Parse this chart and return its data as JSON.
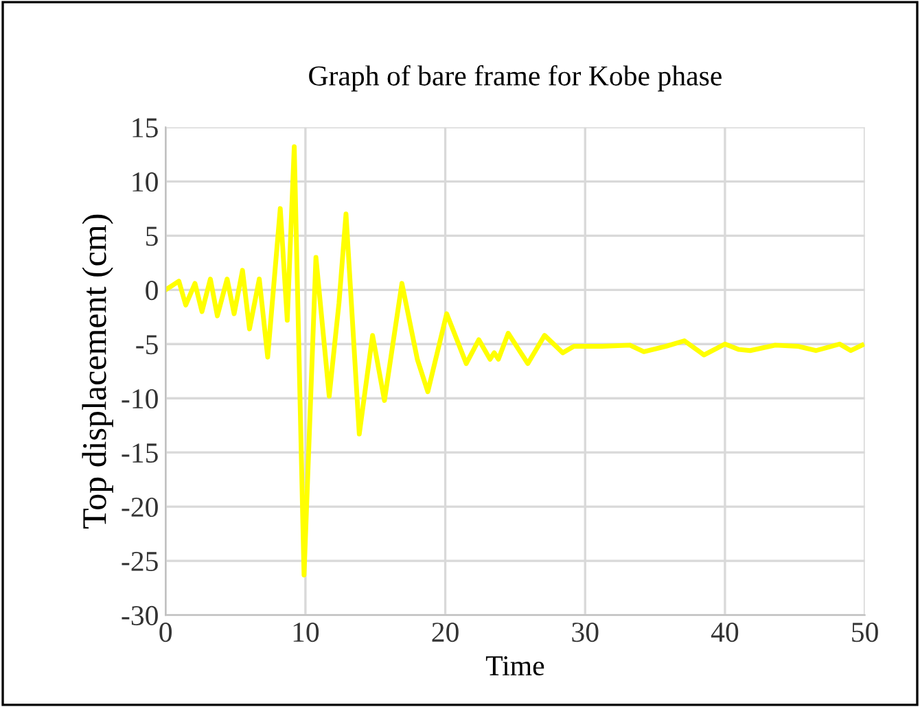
{
  "chart_data": {
    "type": "line",
    "title": "Graph of bare frame for Kobe phase",
    "xlabel": "Time",
    "ylabel": "Top displacement (cm)",
    "xlim": [
      0,
      50
    ],
    "xticks": [
      0,
      10,
      20,
      30,
      40,
      50
    ],
    "ylim": [
      -30,
      15
    ],
    "yticks": [
      -30,
      -25,
      -20,
      -15,
      -10,
      -5,
      0,
      5,
      10,
      15
    ],
    "grid": true,
    "line_style": "solid",
    "marker": "none",
    "series": [
      {
        "color": "#ffff00",
        "x": [
          0,
          0.95,
          1.44,
          2.1,
          2.6,
          3.2,
          3.7,
          4.4,
          4.9,
          5.5,
          6.0,
          6.7,
          7.3,
          8.2,
          8.7,
          9.2,
          9.9,
          10.75,
          11.7,
          12.4,
          12.9,
          13.85,
          14.8,
          15.65,
          16.9,
          18.0,
          18.75,
          20.1,
          21.5,
          22.4,
          23.2,
          23.5,
          23.8,
          24.5,
          25.9,
          27.1,
          28.4,
          29.2,
          31.2,
          33.2,
          34.2,
          35.8,
          37.1,
          38.5,
          40.0,
          41.0,
          41.8,
          43.6,
          45.2,
          46.5,
          48.2,
          49.0,
          49.8
        ],
        "values": [
          0,
          0.8,
          -1.4,
          0.6,
          -2.0,
          1.0,
          -2.4,
          1.0,
          -2.2,
          1.8,
          -3.6,
          1.0,
          -6.2,
          7.5,
          -2.8,
          13.2,
          -26.3,
          3.0,
          -9.8,
          -1.2,
          7.0,
          -13.3,
          -4.2,
          -10.2,
          0.6,
          -6.4,
          -9.4,
          -2.2,
          -6.8,
          -4.6,
          -6.4,
          -5.8,
          -6.4,
          -4.0,
          -6.8,
          -4.2,
          -5.8,
          -5.2,
          -5.2,
          -5.1,
          -5.7,
          -5.2,
          -4.7,
          -6.0,
          -5.0,
          -5.5,
          -5.6,
          -5.1,
          -5.2,
          -5.6,
          -5.0,
          -5.6,
          -5.1
        ]
      }
    ]
  }
}
